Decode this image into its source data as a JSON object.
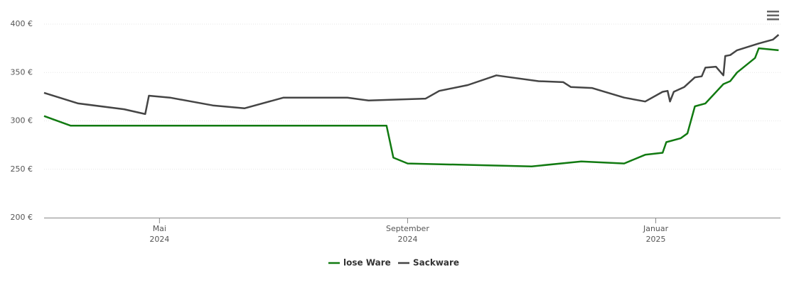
{
  "chart_data": {
    "type": "line",
    "xlim": [
      2.14,
      14.01
    ],
    "xticks": [
      {
        "value": 4,
        "label": "Mai",
        "sublabel": "2024"
      },
      {
        "value": 8,
        "label": "September",
        "sublabel": "2024"
      },
      {
        "value": 12,
        "label": "Januar",
        "sublabel": "2025"
      }
    ],
    "ylim": [
      200,
      400
    ],
    "yticks": [
      {
        "value": 200,
        "label": "200 €"
      },
      {
        "value": 250,
        "label": "250 €"
      },
      {
        "value": 300,
        "label": "300 €"
      },
      {
        "value": 350,
        "label": "350 €"
      },
      {
        "value": 400,
        "label": "400 €"
      }
    ],
    "grid": true,
    "legend": "bottom",
    "series": [
      {
        "name": "lose Ware",
        "color": "#117a11",
        "x": [
          2.14,
          2.57,
          7.66,
          7.77,
          8.0,
          10.0,
          10.8,
          11.49,
          11.83,
          12.11,
          12.17,
          12.4,
          12.51,
          12.63,
          12.8,
          13.09,
          13.2,
          13.31,
          13.6,
          13.66,
          13.98
        ],
        "values": [
          305,
          295,
          295,
          262,
          256,
          253,
          258,
          256,
          265,
          267,
          278,
          282,
          287,
          315,
          318,
          338,
          341,
          350,
          365,
          375,
          373
        ]
      },
      {
        "name": "Sackware",
        "color": "#454545",
        "x": [
          2.14,
          2.69,
          3.43,
          3.77,
          3.83,
          4.17,
          4.86,
          5.37,
          6.0,
          7.03,
          7.37,
          8.29,
          8.51,
          8.97,
          9.43,
          9.54,
          10.11,
          10.51,
          10.63,
          10.97,
          11.49,
          11.83,
          12.11,
          12.19,
          12.23,
          12.29,
          12.46,
          12.63,
          12.74,
          12.8,
          12.97,
          13.09,
          13.12,
          13.2,
          13.31,
          13.66,
          13.89,
          13.98
        ],
        "values": [
          329,
          318,
          312,
          307,
          326,
          324,
          316,
          313,
          324,
          324,
          321,
          323,
          331,
          337,
          347,
          346,
          341,
          340,
          335,
          334,
          324,
          320,
          330,
          331,
          320,
          330,
          335,
          345,
          346,
          355,
          356,
          347,
          367,
          368,
          373,
          380,
          384,
          389
        ]
      }
    ]
  }
}
